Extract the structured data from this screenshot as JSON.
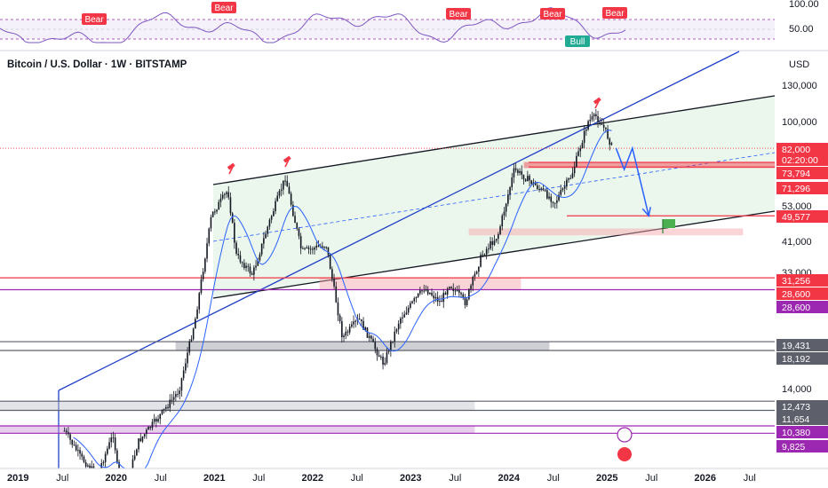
{
  "header": {
    "title": "Bitcoin / U.S. Dollar · 1W · BITSTAMP",
    "currency": "USD"
  },
  "indicator": {
    "y_ticks": [
      "100.00",
      "50.00"
    ],
    "signals": [
      {
        "label": "Bear",
        "color": "#f23645"
      },
      {
        "label": "Bear",
        "color": "#f23645"
      },
      {
        "label": "Bear",
        "color": "#f23645"
      },
      {
        "label": "Bear",
        "color": "#f23645"
      },
      {
        "label": "Bear",
        "color": "#f23645"
      },
      {
        "label": "Bull",
        "color": "#22ab94"
      }
    ]
  },
  "chart_data": {
    "type": "candlestick",
    "symbol": "Bitcoin / U.S. Dollar",
    "interval": "1W",
    "exchange": "BITSTAMP",
    "y_scale": "log",
    "x_ticks": [
      "2019",
      "Jul",
      "2020",
      "Jul",
      "2021",
      "Jul",
      "2022",
      "Jul",
      "2023",
      "Jul",
      "2024",
      "Jul",
      "2025",
      "Jul",
      "2026",
      "Jul"
    ],
    "y_ticks": [
      "130,000",
      "100,000",
      "53,000",
      "41,000",
      "33,000",
      "14,000"
    ],
    "price_tags": [
      {
        "value": "82,000",
        "sub": "02:20:00",
        "color": "#f23645"
      },
      {
        "value": "73,794",
        "color": "#f23645"
      },
      {
        "value": "71,296",
        "color": "#f23645"
      },
      {
        "value": "49,577",
        "color": "#f23645"
      },
      {
        "value": "31,256",
        "color": "#f23645"
      },
      {
        "value": "28,600",
        "color": "#f23645"
      },
      {
        "value": "28,600",
        "color": "#9c27b0"
      },
      {
        "value": "19,431",
        "color": "#5d606b"
      },
      {
        "value": "18,192",
        "color": "#5d606b"
      },
      {
        "value": "12,473",
        "color": "#5d606b"
      },
      {
        "value": "11,654",
        "color": "#5d606b"
      },
      {
        "value": "10,380",
        "color": "#9c27b0"
      },
      {
        "value": "9,825",
        "color": "#9c27b0"
      }
    ],
    "price_path": [
      [
        "2019-08",
        10000
      ],
      [
        "2019-10",
        8200
      ],
      [
        "2019-12",
        7200
      ],
      [
        "2020-02",
        9800
      ],
      [
        "2020-03",
        5800
      ],
      [
        "2020-05",
        9200
      ],
      [
        "2020-08",
        11500
      ],
      [
        "2020-10",
        13500
      ],
      [
        "2020-12",
        23000
      ],
      [
        "2021-02",
        50000
      ],
      [
        "2021-04",
        60000
      ],
      [
        "2021-05",
        37000
      ],
      [
        "2021-07",
        32000
      ],
      [
        "2021-09",
        47000
      ],
      [
        "2021-11",
        66000
      ],
      [
        "2022-01",
        38000
      ],
      [
        "2022-04",
        40000
      ],
      [
        "2022-06",
        20000
      ],
      [
        "2022-08",
        23000
      ],
      [
        "2022-11",
        16500
      ],
      [
        "2023-01",
        23000
      ],
      [
        "2023-04",
        29000
      ],
      [
        "2023-06",
        26000
      ],
      [
        "2023-07",
        30000
      ],
      [
        "2023-09",
        26000
      ],
      [
        "2023-11",
        37000
      ],
      [
        "2024-01",
        43000
      ],
      [
        "2024-03",
        70000
      ],
      [
        "2024-05",
        64000
      ],
      [
        "2024-08",
        55000
      ],
      [
        "2024-10",
        67000
      ],
      [
        "2024-12",
        100000
      ],
      [
        "2025-01",
        104000
      ],
      [
        "2025-02",
        95000
      ],
      [
        "2025-03",
        82000
      ]
    ],
    "projection": [
      [
        "2025-03",
        82000
      ],
      [
        "2025-04",
        70000
      ],
      [
        "2025-05",
        82000
      ],
      [
        "2025-07",
        49577
      ]
    ],
    "zones": [
      {
        "name": "supply-zone-upper",
        "low": 71296,
        "high": 73794,
        "color": "#f23645"
      },
      {
        "name": "demand-zone-mid",
        "low": 43000,
        "high": 45000,
        "color": "#f7a1a8"
      },
      {
        "name": "zone-31k",
        "low": 28600,
        "high": 31256,
        "color": "#f7a1a8"
      },
      {
        "name": "zone-19k",
        "low": 18192,
        "high": 19431,
        "color": "#9598a1"
      },
      {
        "name": "zone-12k",
        "low": 11654,
        "high": 12473,
        "color": "#c3c5cc"
      },
      {
        "name": "zone-10k",
        "low": 9825,
        "high": 10380,
        "color": "#ce93d8"
      }
    ]
  }
}
